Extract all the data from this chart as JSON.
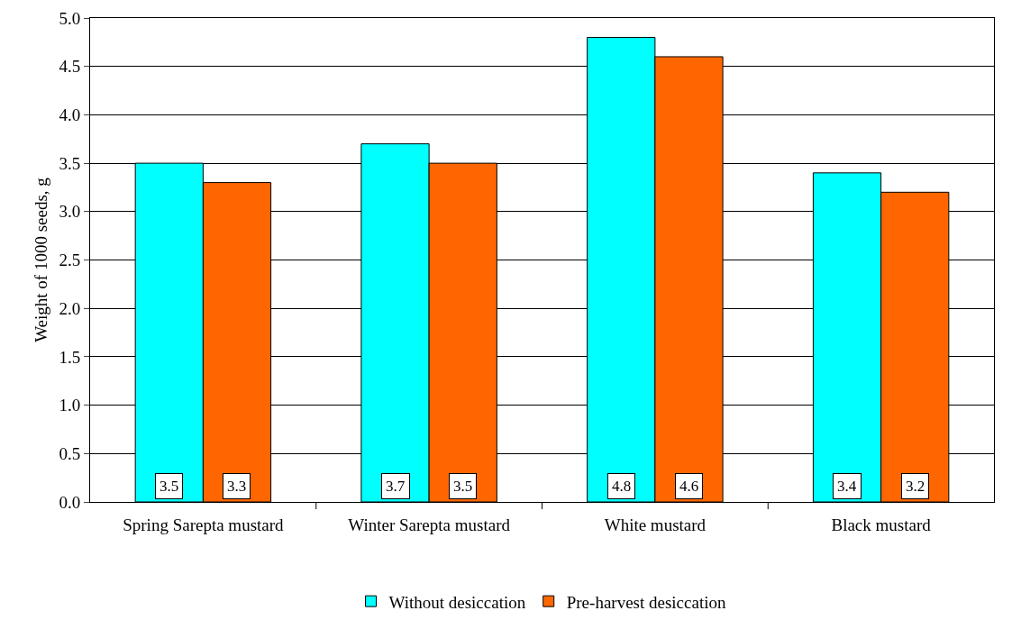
{
  "chart_data": {
    "type": "bar",
    "ylabel": "Weight of 1000 seeds, g",
    "categories": [
      "Spring Sarepta mustard",
      "Winter Sarepta mustard",
      "White mustard",
      "Black mustard"
    ],
    "series": [
      {
        "name": "Without desiccation",
        "color": "#00ffff",
        "values": [
          3.5,
          3.7,
          4.8,
          3.4
        ]
      },
      {
        "name": "Pre-harvest desiccation",
        "color": "#ff6600",
        "values": [
          3.3,
          3.5,
          4.6,
          3.2
        ]
      }
    ],
    "ylim": [
      0,
      5
    ],
    "yticks": [
      {
        "value": 0,
        "label": "0.0"
      },
      {
        "value": 0.5,
        "label": "0.5"
      },
      {
        "value": 1,
        "label": "1.0"
      },
      {
        "value": 1.5,
        "label": "1.5"
      },
      {
        "value": 2,
        "label": "2.0"
      },
      {
        "value": 2.5,
        "label": "2.5"
      },
      {
        "value": 3,
        "label": "3.0"
      },
      {
        "value": 3.5,
        "label": "3.5"
      },
      {
        "value": 4,
        "label": "4.0"
      },
      {
        "value": 4.5,
        "label": "4.5"
      },
      {
        "value": 5,
        "label": "5.0"
      }
    ],
    "grid": "y",
    "legend": "bottom",
    "data_labels": true
  }
}
